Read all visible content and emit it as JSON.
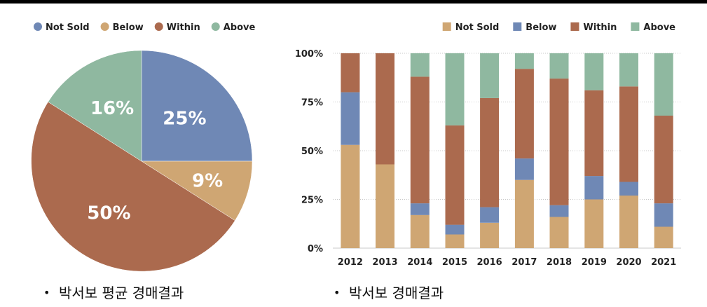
{
  "colors": {
    "not_sold": "#6f88b5",
    "below": "#cfa673",
    "within": "#ab6a4e",
    "above": "#8fb8a0",
    "not_sold_bar": "#cfa673",
    "below_bar": "#6f88b5"
  },
  "captions": {
    "left": "박서보 평균 경매결과",
    "right": "박서보 경매결과"
  },
  "chart_data": [
    {
      "type": "pie",
      "legend": [
        "Not Sold",
        "Below",
        "Within",
        "Above"
      ],
      "legend_position": "top-left",
      "slices": [
        {
          "name": "Not Sold",
          "value": 25,
          "label": "25%"
        },
        {
          "name": "Below",
          "value": 9,
          "label": "9%"
        },
        {
          "name": "Within",
          "value": 50,
          "label": "50%"
        },
        {
          "name": "Above",
          "value": 16,
          "label": "16%"
        }
      ]
    },
    {
      "type": "bar",
      "stacked": true,
      "legend": [
        "Not Sold",
        "Below",
        "Within",
        "Above"
      ],
      "legend_position": "top-right",
      "categories": [
        "2012",
        "2013",
        "2014",
        "2015",
        "2016",
        "2017",
        "2018",
        "2019",
        "2020",
        "2021"
      ],
      "y_ticks": [
        "0%",
        "25%",
        "50%",
        "75%",
        "100%"
      ],
      "ylim": [
        0,
        100
      ],
      "grid": true,
      "series": [
        {
          "name": "Not Sold",
          "values": [
            53,
            43,
            17,
            7,
            13,
            35,
            16,
            25,
            27,
            11
          ]
        },
        {
          "name": "Below",
          "values": [
            27,
            0,
            6,
            5,
            8,
            11,
            6,
            12,
            7,
            12
          ]
        },
        {
          "name": "Within",
          "values": [
            20,
            57,
            65,
            51,
            56,
            46,
            65,
            44,
            49,
            45
          ]
        },
        {
          "name": "Above",
          "values": [
            0,
            0,
            12,
            37,
            23,
            8,
            13,
            19,
            17,
            32
          ]
        }
      ]
    }
  ]
}
